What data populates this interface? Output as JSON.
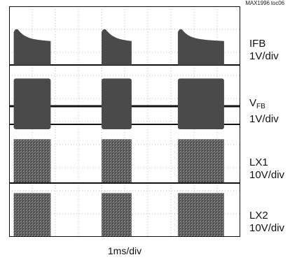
{
  "reference": "MAX1996 toc06",
  "chart_data": {
    "type": "line",
    "grid": true,
    "x_divisions": 10,
    "xlabel": "1ms/div",
    "periods_ms": [
      [
        0.2,
        1.8
      ],
      [
        4.0,
        5.3
      ],
      [
        7.3,
        9.3
      ]
    ],
    "traces": [
      {
        "id": "ifb",
        "name": "IFB",
        "scale": "1V/div",
        "shape": "decay-pulse",
        "peak_div": 1.6,
        "settle_div": 1.1
      },
      {
        "id": "vfb",
        "name": "V",
        "name_sub": "FB",
        "scale": "1V/div",
        "shape": "square-pulse",
        "high_div": 1.2
      },
      {
        "id": "lx1",
        "name": "LX1",
        "scale": "10V/div",
        "shape": "switching-burst",
        "high_div": 1.9
      },
      {
        "id": "lx2",
        "name": "LX2",
        "scale": "10V/div",
        "shape": "switching-burst",
        "high_div": 1.9
      }
    ]
  },
  "colors": {
    "trace": "#4a4a4a",
    "burst": "#555555",
    "grid": "#bdbdbd",
    "border": "#111111"
  }
}
